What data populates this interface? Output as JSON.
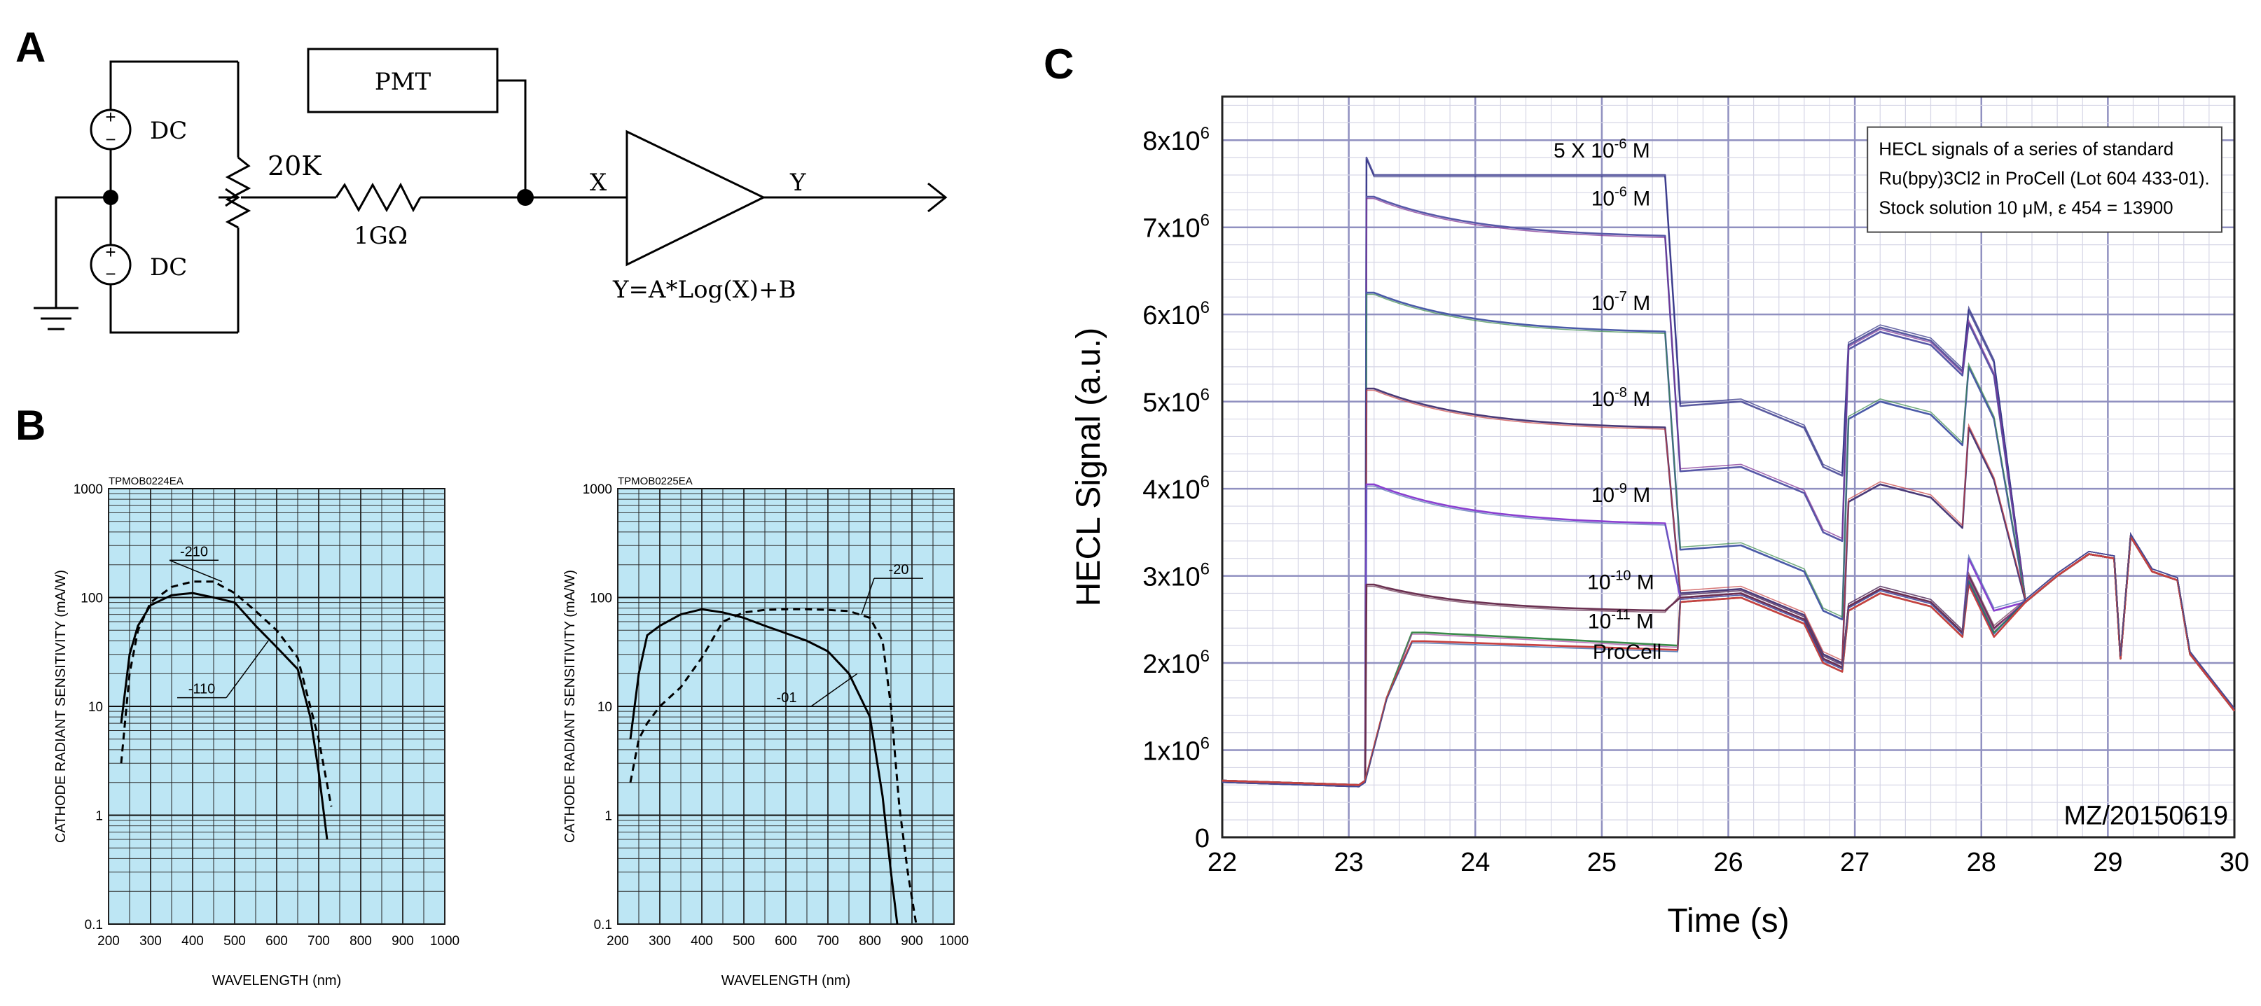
{
  "panels": {
    "a": "A",
    "b": "B",
    "c": "C"
  },
  "circuit": {
    "dc_top": "DC",
    "dc_bottom": "DC",
    "resistor_pot": "20K",
    "resistor_big": "1GΩ",
    "pmt": "PMT",
    "node_x": "X",
    "node_y": "Y",
    "formula": "Y=A*Log(X)+B"
  },
  "chart_data": [
    {
      "type": "line",
      "title": "TPMOB0224EA",
      "xlabel": "WAVELENGTH (nm)",
      "ylabel": "CATHODE RADIANT SENSITIVITY (mA/W)",
      "xlim": [
        200,
        1000
      ],
      "ylim": [
        0.1,
        1000
      ],
      "yscale": "log",
      "x_ticks": [
        "200",
        "300",
        "400",
        "500",
        "600",
        "700",
        "800",
        "900",
        "1000"
      ],
      "y_ticks": [
        "0.1",
        "1",
        "10",
        "100",
        "1000"
      ],
      "series": [
        {
          "name": "-110",
          "style": "solid",
          "x": [
            230,
            250,
            270,
            300,
            350,
            400,
            450,
            500,
            550,
            600,
            650,
            680,
            700,
            720
          ],
          "y": [
            7,
            30,
            55,
            85,
            105,
            110,
            100,
            90,
            55,
            35,
            22,
            8,
            2.5,
            0.6
          ]
        },
        {
          "name": "-210",
          "style": "dashed",
          "x": [
            230,
            250,
            270,
            300,
            350,
            400,
            450,
            500,
            550,
            600,
            650,
            700,
            730
          ],
          "y": [
            3,
            20,
            50,
            90,
            125,
            140,
            140,
            110,
            75,
            50,
            28,
            5,
            1.2
          ]
        }
      ]
    },
    {
      "type": "line",
      "title": "TPMOB0225EA",
      "xlabel": "WAVELENGTH (nm)",
      "ylabel": "CATHODE RADIANT SENSITIVITY (mA/W)",
      "xlim": [
        200,
        1000
      ],
      "ylim": [
        0.1,
        1000
      ],
      "yscale": "log",
      "x_ticks": [
        "200",
        "300",
        "400",
        "500",
        "600",
        "700",
        "800",
        "900",
        "1000"
      ],
      "y_ticks": [
        "0.1",
        "1",
        "10",
        "100",
        "1000"
      ],
      "series": [
        {
          "name": "-01",
          "style": "solid",
          "x": [
            230,
            250,
            270,
            300,
            350,
            400,
            450,
            500,
            550,
            600,
            650,
            700,
            750,
            800,
            830,
            850,
            865
          ],
          "y": [
            5,
            20,
            45,
            55,
            70,
            78,
            73,
            65,
            55,
            47,
            40,
            32,
            20,
            8,
            1.5,
            0.3,
            0.1
          ]
        },
        {
          "name": "-20",
          "style": "dashed",
          "x": [
            230,
            250,
            270,
            300,
            350,
            400,
            450,
            500,
            550,
            600,
            650,
            700,
            750,
            800,
            830,
            850,
            870,
            890,
            910
          ],
          "y": [
            2,
            5,
            7,
            10,
            15,
            28,
            60,
            73,
            77,
            78,
            78,
            77,
            75,
            65,
            40,
            10,
            1.2,
            0.3,
            0.1
          ]
        }
      ]
    },
    {
      "type": "line",
      "xlabel": "Time (s)",
      "ylabel": "HECL Signal (a.u.)",
      "xlim": [
        22,
        30
      ],
      "ylim": [
        0,
        8.5
      ],
      "y_unit": "x10^6",
      "x_ticks": [
        "22",
        "23",
        "24",
        "25",
        "26",
        "27",
        "28",
        "29",
        "30"
      ],
      "y_ticks": [
        "0",
        "1x10",
        "2x10",
        "3x10",
        "4x10",
        "5x10",
        "6x10",
        "7x10",
        "8x10"
      ],
      "y_tick_exp": "6",
      "legend_box": [
        "HECL signals of a series of standard",
        "Ru(bpy)3Cl2 in ProCell (Lot 604 433-01).",
        "Stock solution 10 μM, ε 454 = 13900"
      ],
      "watermark": "MZ/20150619",
      "series": [
        {
          "name": "5 X 10-6 M",
          "label_base": "5 X 10",
          "label_exp": "-6",
          "label_unit": "M",
          "color": "#5a5aa0",
          "plateau_start": 7.6,
          "plateau_end": 7.6,
          "spike": 7.8
        },
        {
          "name": "10-6 M",
          "label_base": "10",
          "label_exp": "-6",
          "label_unit": "M",
          "color": "#5858a8",
          "plateau_start": 7.35,
          "plateau_end": 6.9,
          "spike": 7.35
        },
        {
          "name": "10-7 M",
          "label_base": "10",
          "label_exp": "-7",
          "label_unit": "M",
          "color": "#4a5aa8",
          "plateau_start": 6.25,
          "plateau_end": 5.8,
          "spike": 6.25
        },
        {
          "name": "10-8 M",
          "label_base": "10",
          "label_exp": "-8",
          "label_unit": "M",
          "color": "#4a3a78",
          "plateau_start": 5.15,
          "plateau_end": 4.7,
          "spike": 5.15
        },
        {
          "name": "10-9 M",
          "label_base": "10",
          "label_exp": "-9",
          "label_unit": "M",
          "color": "#8a40d0",
          "plateau_start": 4.05,
          "plateau_end": 3.6,
          "spike": 4.05
        },
        {
          "name": "10-10 M",
          "label_base": "10",
          "label_exp": "-10",
          "label_unit": "M",
          "color": "#6a3050",
          "plateau_start": 2.9,
          "plateau_end": 2.6,
          "spike": 2.9
        },
        {
          "name": "10-11 M",
          "label_base": "10",
          "label_exp": "-11",
          "label_unit": "M",
          "color": "#3a8a4a",
          "plateau_start": 2.35,
          "plateau_end": 2.2,
          "spike": 2.35
        },
        {
          "name": "ProCell",
          "label_base": "ProCell",
          "label_exp": "",
          "label_unit": "",
          "color": "#c84040",
          "plateau_start": 2.25,
          "plateau_end": 2.15,
          "spike": 2.25
        }
      ]
    }
  ]
}
